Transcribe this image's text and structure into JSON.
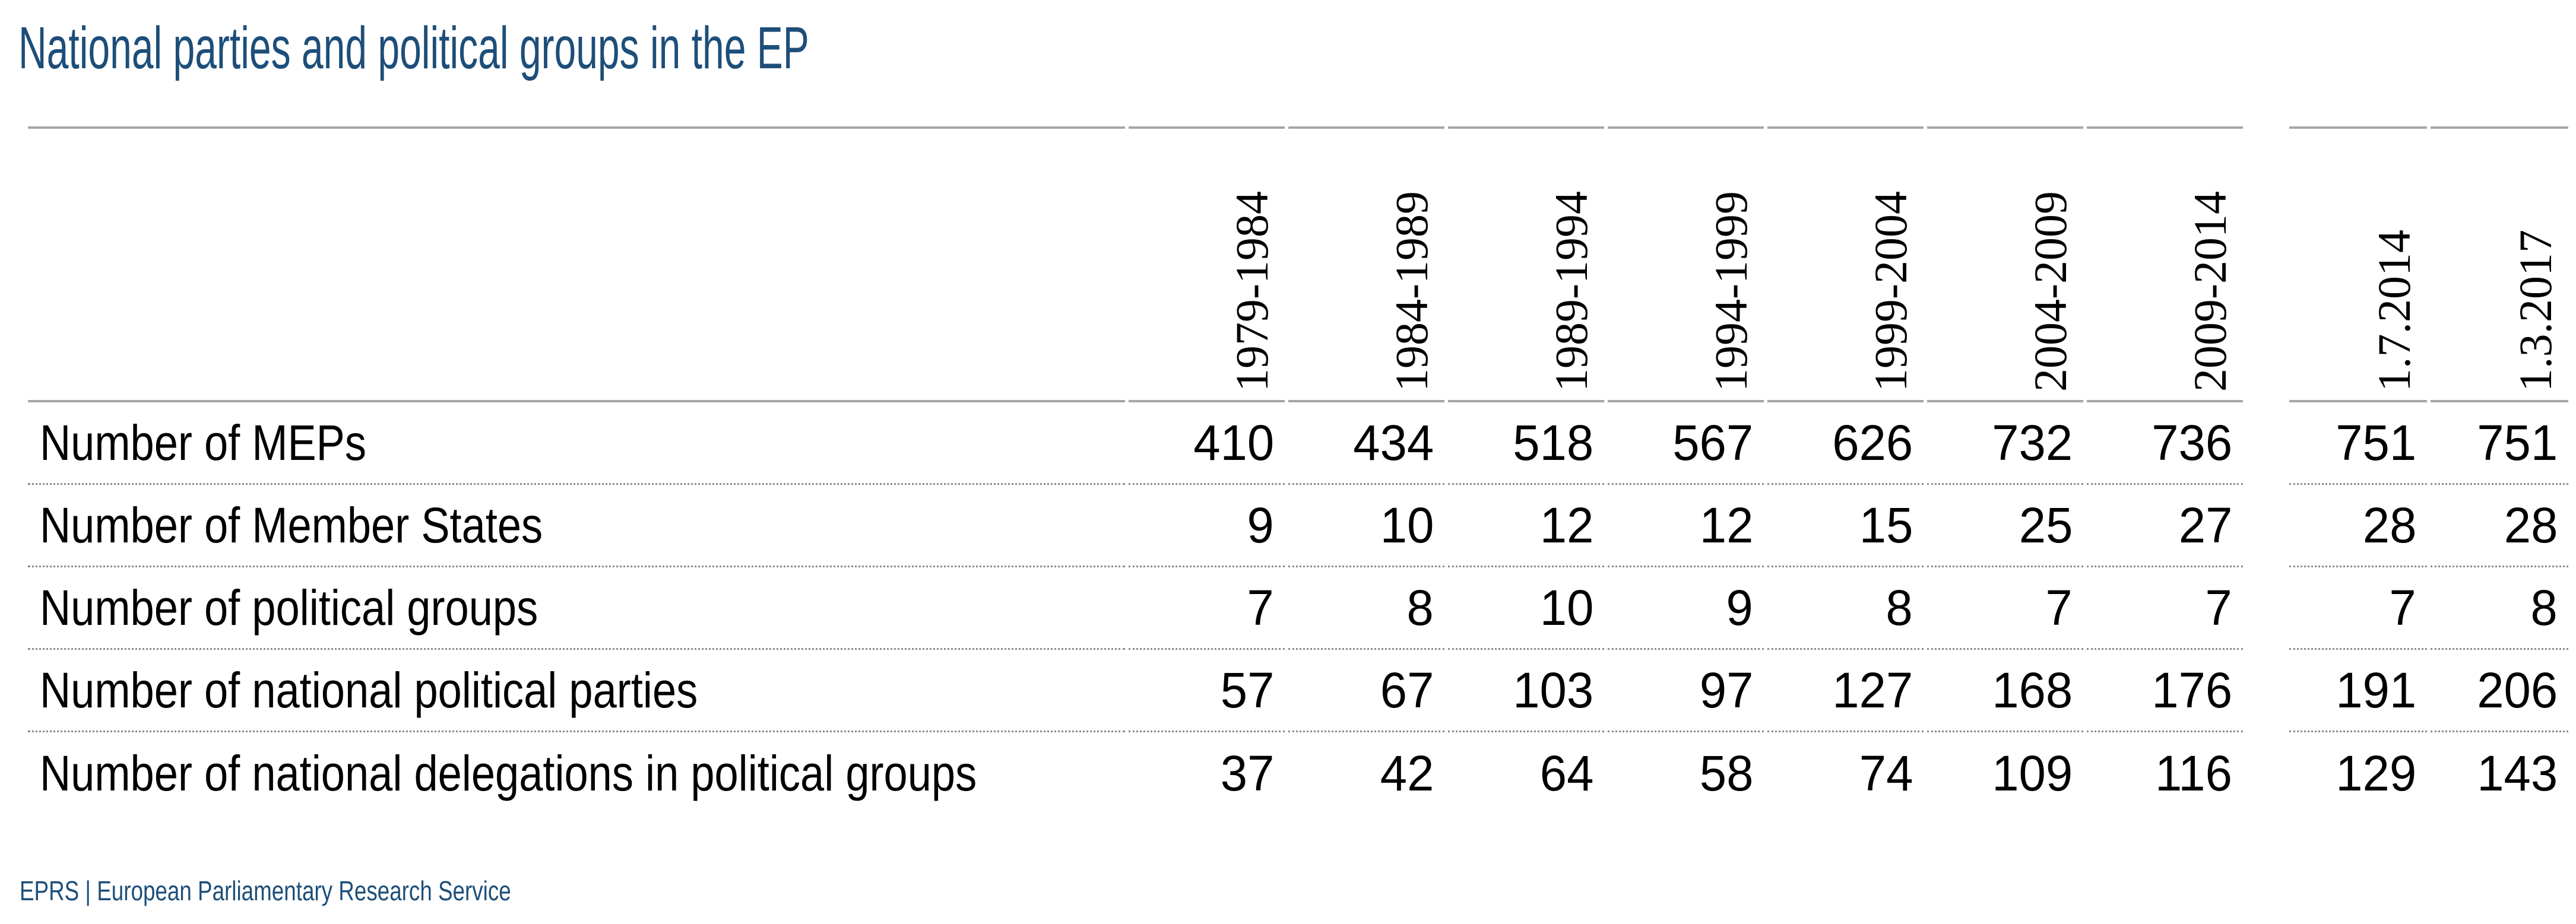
{
  "title": "National parties and political groups in the EP",
  "footer": {
    "text": "EPRS | European Parliamentary Research Service"
  },
  "colors": {
    "accent_blue": "#1d4e79",
    "solid_line_gray": "#a6a6a6",
    "dotted_line_gray": "#8a8a8a",
    "text_black": "#000000"
  },
  "chart_data": {
    "type": "table",
    "title": "National parties and political groups in the EP",
    "columns": [
      "1979-1984",
      "1984-1989",
      "1989-1994",
      "1994-1999",
      "1999-2004",
      "2004-2009",
      "2009-2014",
      "1.7.2014",
      "1.3.2017"
    ],
    "column_groups": {
      "parliamentary_terms": [
        "1979-1984",
        "1984-1989",
        "1989-1994",
        "1994-1999",
        "1999-2004",
        "2004-2009",
        "2009-2014"
      ],
      "snapshot_dates": [
        "1.7.2014",
        "1.3.2017"
      ]
    },
    "rows": [
      {
        "label": "Number of MEPs",
        "values": [
          410,
          434,
          518,
          567,
          626,
          732,
          736,
          751,
          751
        ]
      },
      {
        "label": "Number of Member States",
        "values": [
          9,
          10,
          12,
          12,
          15,
          25,
          27,
          28,
          28
        ]
      },
      {
        "label": "Number of political groups",
        "values": [
          7,
          8,
          10,
          9,
          8,
          7,
          7,
          7,
          8
        ]
      },
      {
        "label": "Number of national political parties",
        "values": [
          57,
          67,
          103,
          97,
          127,
          168,
          176,
          191,
          206
        ]
      },
      {
        "label": "Number of national delegations in political groups",
        "values": [
          37,
          42,
          64,
          58,
          74,
          109,
          116,
          129,
          143
        ]
      }
    ],
    "layout": {
      "grid": "off",
      "header_rotation_degrees": 90,
      "value_alignment": "right"
    }
  }
}
